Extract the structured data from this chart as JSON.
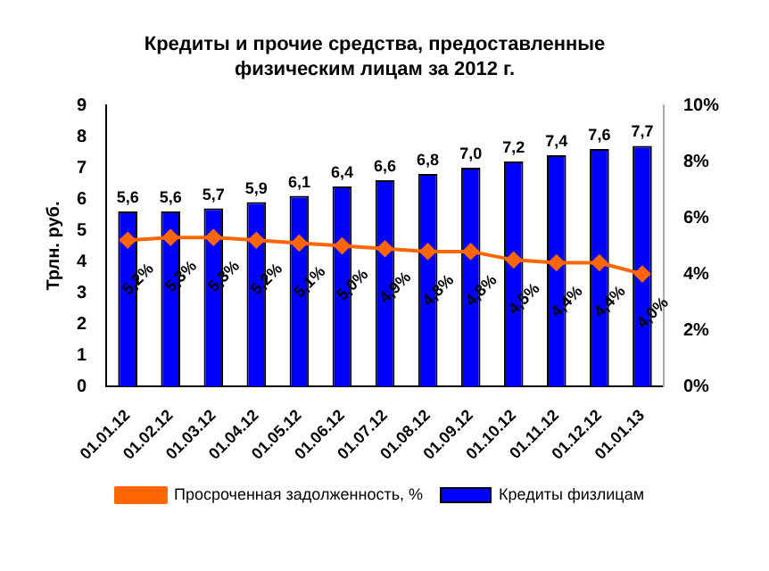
{
  "chart_data": {
    "type": "bar",
    "title": "Кредиты и прочие средства, предоставленные физическим лицам за 2012 г.",
    "ylabel": "Трлн. руб.",
    "categories": [
      "01.01.12",
      "01.02.12",
      "01.03.12",
      "01.04.12",
      "01.05.12",
      "01.06.12",
      "01.07.12",
      "01.08.12",
      "01.09.12",
      "01.10.12",
      "01.11.12",
      "01.12.12",
      "01.01.13"
    ],
    "series": [
      {
        "name": "Кредиты физлицам",
        "color": "#0000ff",
        "values": [
          5.6,
          5.6,
          5.7,
          5.9,
          6.1,
          6.4,
          6.6,
          6.8,
          7.0,
          7.2,
          7.4,
          7.6,
          7.7
        ],
        "value_labels": [
          "5,6",
          "5,6",
          "5,7",
          "5,9",
          "6,1",
          "6,4",
          "6,6",
          "6,8",
          "7,0",
          "7,2",
          "7,4",
          "7,6",
          "7,7"
        ]
      },
      {
        "name": "Просроченная задолженность, %",
        "type": "line",
        "axis": "y2",
        "color": "#ff6600",
        "marker": "diamond",
        "values": [
          5.2,
          5.3,
          5.3,
          5.2,
          5.1,
          5.0,
          4.9,
          4.8,
          4.8,
          4.5,
          4.4,
          4.4,
          4.0
        ],
        "value_labels": [
          "5,2%",
          "5,3%",
          "5,3%",
          "5,2%",
          "5,1%",
          "5,0%",
          "4,9%",
          "4,8%",
          "4,8%",
          "4,5%",
          "4,4%",
          "4,4%",
          "4,0%"
        ]
      }
    ],
    "ylim": [
      0,
      9
    ],
    "yticks": [
      0,
      1,
      2,
      3,
      4,
      5,
      6,
      7,
      8,
      9
    ],
    "y2lim": [
      0,
      10
    ],
    "y2ticks": [
      {
        "value": 0,
        "label": "0%"
      },
      {
        "value": 2,
        "label": "2%"
      },
      {
        "value": 4,
        "label": "4%"
      },
      {
        "value": 6,
        "label": "6%"
      },
      {
        "value": 8,
        "label": "8%"
      },
      {
        "value": 10,
        "label": "10%"
      }
    ],
    "legend": "bottom",
    "grid": false
  }
}
